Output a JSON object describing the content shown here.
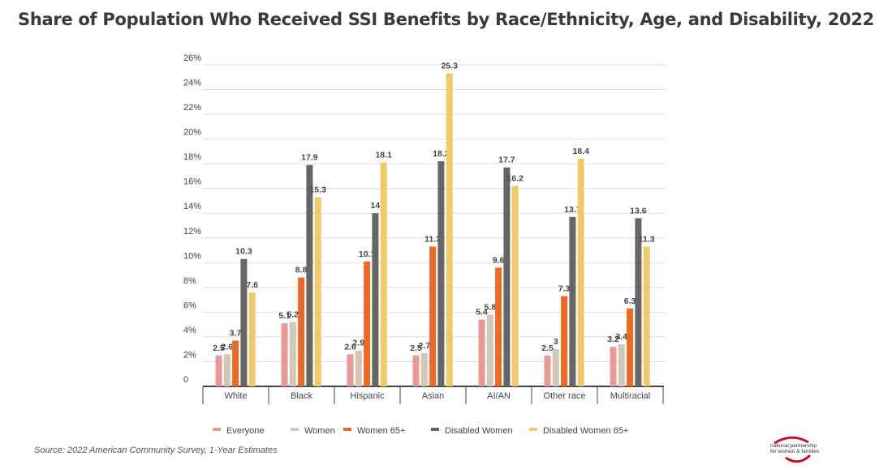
{
  "chart_data": {
    "type": "bar",
    "title": "Share of Population Who Received SSI Benefits by Race/Ethnicity, Age, and Disability, 2022",
    "xlabel": "",
    "ylabel": "",
    "ylim": [
      0,
      26
    ],
    "yticks": [
      "0",
      "2%",
      "4%",
      "6%",
      "8%",
      "10%",
      "12%",
      "14%",
      "16%",
      "18%",
      "20%",
      "22%",
      "24%",
      "26%"
    ],
    "grid": true,
    "legend_position": "bottom",
    "categories": [
      "White",
      "Black",
      "Hispanic",
      "Asian",
      "AI/AN",
      "Other race",
      "Multiracial"
    ],
    "series": [
      {
        "name": "Everyone",
        "color": "#E99A94",
        "values": [
          2.5,
          5.1,
          2.6,
          2.5,
          5.4,
          2.5,
          3.2
        ]
      },
      {
        "name": "Women",
        "color": "#D3C7B5",
        "values": [
          2.6,
          5.2,
          2.9,
          2.7,
          5.8,
          3,
          3.4
        ]
      },
      {
        "name": "Women 65+",
        "color": "#EE6A24",
        "values": [
          3.7,
          8.8,
          10.1,
          11.3,
          9.6,
          7.3,
          6.3
        ]
      },
      {
        "name": "Disabled Women",
        "color": "#666666",
        "values": [
          10.3,
          17.9,
          14,
          18.2,
          17.7,
          13.7,
          13.6
        ]
      },
      {
        "name": "Disabled Women 65+",
        "color": "#F0CA68",
        "values": [
          7.6,
          15.3,
          18.1,
          25.3,
          16.2,
          18.4,
          11.3
        ]
      }
    ]
  },
  "source": "Source: 2022 American Community Survey, 1-Year Estimates",
  "logo_text": "national partnership for women & families"
}
